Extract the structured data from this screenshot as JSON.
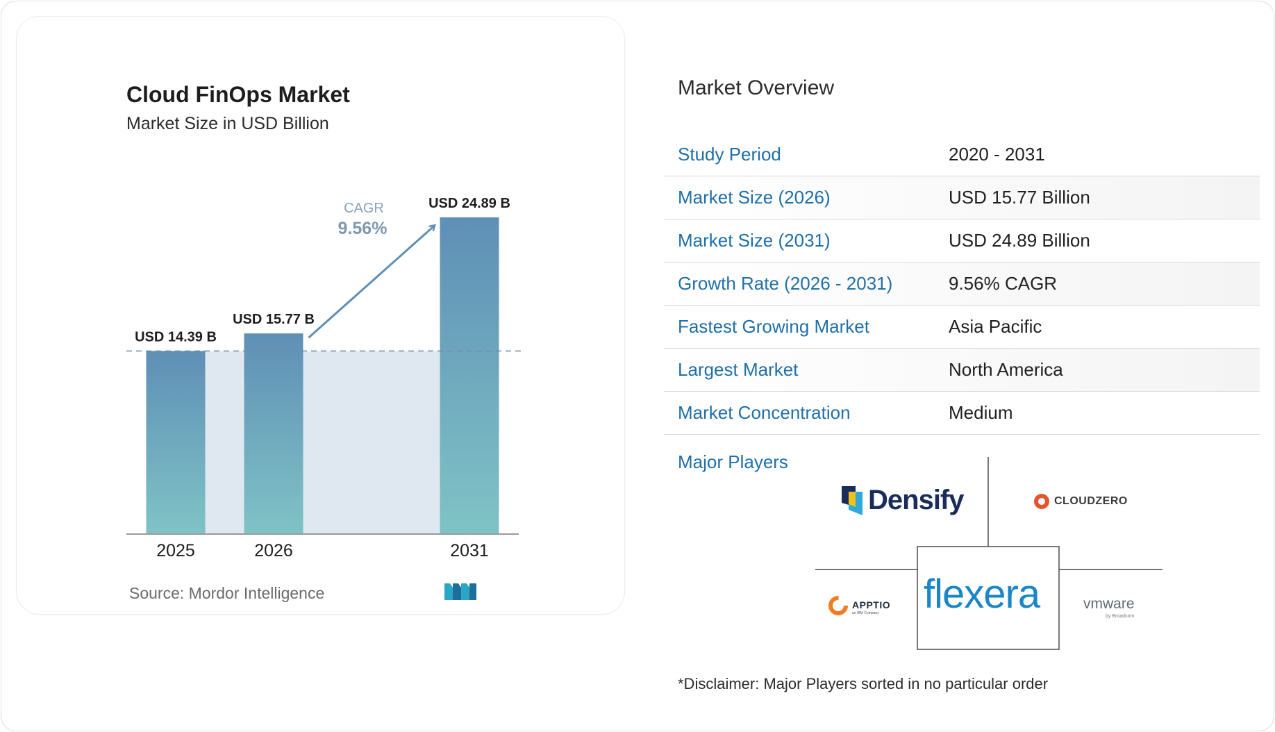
{
  "chart_data": {
    "type": "bar",
    "title": "Cloud FinOps Market",
    "subtitle": "Market Size in USD Billion",
    "categories": [
      "2025",
      "2026",
      "2031"
    ],
    "values": [
      14.39,
      15.77,
      24.89
    ],
    "data_labels": [
      "USD 14.39 B",
      "USD 15.77 B",
      "USD 24.89 B"
    ],
    "cagr_label": "CAGR",
    "cagr_value": "9.56%",
    "baseline_reference": 14.39,
    "colors": {
      "bar_top": "#5f8fb6",
      "bar_bottom": "#7fc3c6",
      "area": "#dfe8f1",
      "dash": "#6b8fa8",
      "arrow": "#5f8fb6"
    }
  },
  "source": "Source: Mordor Intelligence",
  "overview": {
    "heading": "Market Overview",
    "rows": [
      {
        "label": "Study Period",
        "value": "2020 - 2031"
      },
      {
        "label": "Market Size (2026)",
        "value": "USD 15.77 Billion"
      },
      {
        "label": "Market Size (2031)",
        "value": "USD 24.89 Billion"
      },
      {
        "label": "Growth Rate (2026 - 2031)",
        "value": "9.56% CAGR"
      },
      {
        "label": "Fastest Growing Market",
        "value": "Asia Pacific"
      },
      {
        "label": "Largest Market",
        "value": "North America"
      },
      {
        "label": "Market Concentration",
        "value": "Medium"
      }
    ]
  },
  "players": {
    "label": "Major Players",
    "logos": {
      "densify": "Densify",
      "cloudzero": "CLOUDZERO",
      "apptio": "APPTIO",
      "apptio_sub": "an IBM Company",
      "flexera": "flexera",
      "vmware": "vmware",
      "vmware_sub": "by Broadcom"
    }
  },
  "disclaimer": "*Disclaimer: Major Players sorted in no particular order",
  "colors": {
    "accent_label": "#1f6fa8",
    "text": "#1f1f1f",
    "flexera": "#1a86c8"
  }
}
